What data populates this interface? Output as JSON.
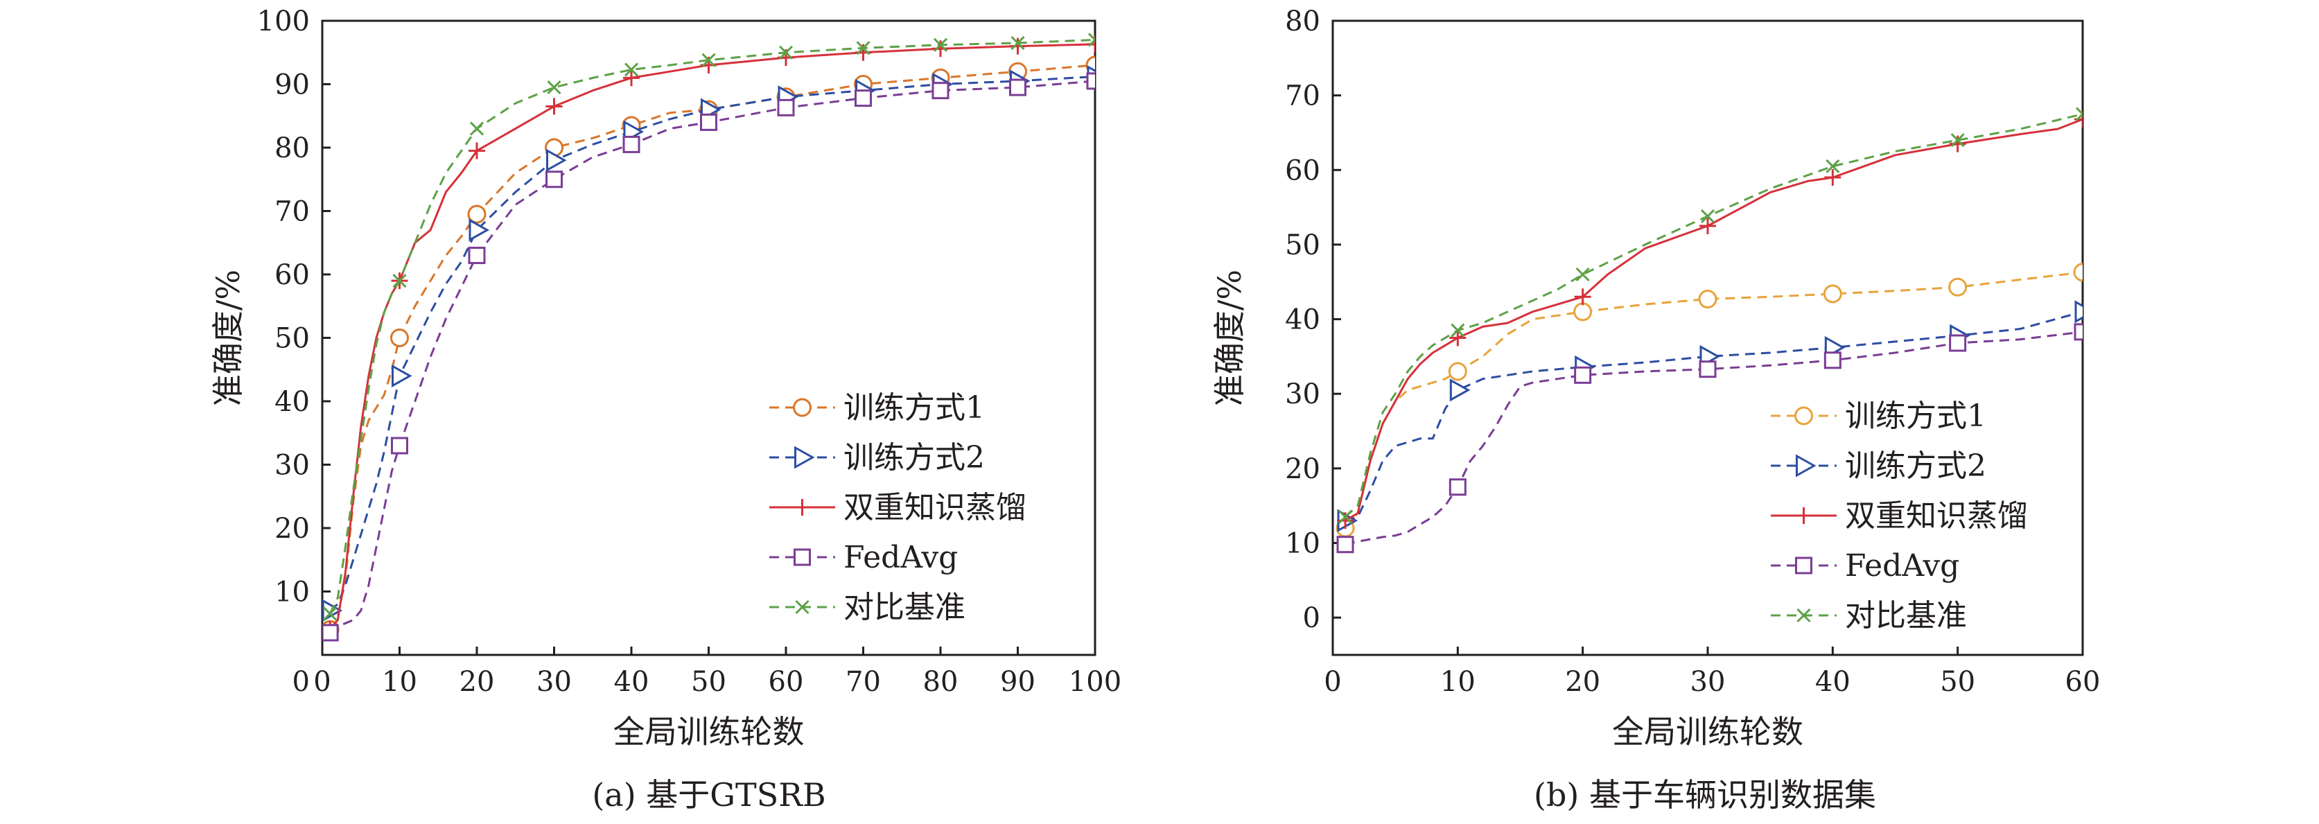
{
  "chart_data": [
    {
      "type": "line",
      "caption": "(a)  基于GTSRB",
      "xlabel": "全局训练轮数",
      "ylabel": "准确度/%",
      "xlim": [
        0,
        100
      ],
      "ylim": [
        0,
        100
      ],
      "xticks": [
        0,
        10,
        20,
        30,
        40,
        50,
        60,
        70,
        80,
        90,
        100
      ],
      "yticks": [
        10,
        20,
        30,
        40,
        50,
        60,
        70,
        80,
        90,
        100
      ],
      "ytick_labels": [
        "10",
        "20",
        "30",
        "40",
        "50",
        "60",
        "70",
        "80",
        "90",
        "100"
      ],
      "grid": false,
      "legend_position": "right",
      "series": [
        {
          "name": "训练方式1",
          "color": "#d9762b",
          "dash": "dashed",
          "marker": "circle",
          "x": [
            1,
            2,
            3,
            4,
            5,
            6,
            7,
            8,
            9,
            10,
            12,
            14,
            16,
            18,
            20,
            25,
            30,
            35,
            40,
            45,
            50,
            60,
            70,
            80,
            90,
            100
          ],
          "y": [
            4,
            6,
            12,
            24,
            33,
            37,
            39,
            41,
            45,
            50,
            55,
            59,
            63,
            66,
            69.5,
            76,
            80,
            81.5,
            83.5,
            85.5,
            86,
            88,
            90,
            91,
            92,
            93
          ]
        },
        {
          "name": "训练方式2",
          "color": "#2c4ea3",
          "dash": "dashed",
          "marker": "triangle-right",
          "x": [
            1,
            2,
            3,
            4,
            5,
            6,
            7,
            8,
            9,
            10,
            12,
            14,
            16,
            18,
            20,
            25,
            30,
            35,
            40,
            45,
            50,
            60,
            70,
            80,
            90,
            100
          ],
          "y": [
            7,
            8,
            11,
            15,
            19,
            23,
            27,
            32,
            38,
            44,
            49,
            54,
            58.5,
            62,
            67,
            73,
            78,
            80.5,
            82.5,
            84.5,
            86,
            88,
            89,
            90,
            90.5,
            91.2
          ]
        },
        {
          "name": "双重知识蒸馏",
          "color": "#d5313a",
          "dash": "solid",
          "marker": "plus",
          "x": [
            1,
            2,
            3,
            4,
            5,
            6,
            7,
            8,
            9,
            10,
            12,
            14,
            16,
            18,
            20,
            25,
            30,
            35,
            40,
            45,
            50,
            60,
            70,
            80,
            90,
            100
          ],
          "y": [
            4,
            5.5,
            13,
            25,
            36,
            44,
            50,
            54,
            57,
            59,
            65,
            67,
            73,
            76,
            79.5,
            83,
            86.5,
            89,
            91,
            92,
            93,
            94.2,
            95,
            95.6,
            96,
            96.3
          ]
        },
        {
          "name": "FedAvg",
          "color": "#7a3d95",
          "dash": "dashed",
          "marker": "square",
          "x": [
            1,
            2,
            3,
            4,
            5,
            6,
            7,
            8,
            9,
            10,
            12,
            14,
            16,
            18,
            20,
            25,
            30,
            35,
            40,
            45,
            50,
            60,
            70,
            80,
            90,
            100
          ],
          "y": [
            3.5,
            4.5,
            5,
            5.5,
            7,
            11,
            17,
            23,
            29,
            33,
            40,
            47,
            53,
            58,
            63,
            71,
            75,
            78.5,
            80.5,
            83,
            84,
            86.3,
            87.8,
            89,
            89.5,
            90.5
          ]
        },
        {
          "name": "对比基准",
          "color": "#5da146",
          "dash": "dashed",
          "marker": "x",
          "x": [
            1,
            2,
            3,
            4,
            5,
            6,
            7,
            8,
            9,
            10,
            12,
            14,
            16,
            18,
            20,
            25,
            30,
            35,
            40,
            45,
            50,
            60,
            70,
            80,
            90,
            100
          ],
          "y": [
            6.5,
            9,
            17,
            26,
            34,
            42,
            49,
            54,
            57,
            59,
            65,
            71,
            76,
            79.5,
            83,
            87,
            89.5,
            91,
            92.3,
            93,
            93.8,
            95,
            95.7,
            96.2,
            96.5,
            97
          ]
        }
      ]
    },
    {
      "type": "line",
      "caption": "(b)  基于车辆识别数据集",
      "xlabel": "全局训练轮数",
      "ylabel": "准确度/%",
      "xlim": [
        0,
        60
      ],
      "ylim": [
        -5,
        80
      ],
      "xticks": [
        0,
        10,
        20,
        30,
        40,
        50,
        60
      ],
      "yticks": [
        0,
        10,
        20,
        30,
        40,
        50,
        60,
        70,
        80
      ],
      "ytick_labels": [
        "0",
        "10",
        "20",
        "30",
        "40",
        "50",
        "60",
        "70",
        "80"
      ],
      "grid": false,
      "legend_position": "right",
      "series": [
        {
          "name": "训练方式1",
          "color": "#e8a33a",
          "dash": "dashed",
          "marker": "circle",
          "x": [
            1,
            2,
            3,
            4,
            5,
            6,
            7,
            8,
            9,
            10,
            12,
            14,
            16,
            18,
            20,
            25,
            30,
            35,
            40,
            45,
            50,
            55,
            60
          ],
          "y": [
            12,
            14,
            21,
            26,
            29,
            30.5,
            31,
            31.5,
            32,
            33,
            35,
            38,
            40,
            40.5,
            41,
            42,
            42.7,
            43,
            43.4,
            43.8,
            44.3,
            45.3,
            46.3
          ]
        },
        {
          "name": "训练方式2",
          "color": "#2c4ea3",
          "dash": "dashed",
          "marker": "triangle-right",
          "x": [
            1,
            2,
            3,
            4,
            5,
            6,
            7,
            8,
            9,
            10,
            12,
            14,
            16,
            18,
            20,
            25,
            30,
            35,
            40,
            45,
            50,
            55,
            60
          ],
          "y": [
            13,
            13.5,
            17,
            21,
            23,
            23.5,
            24,
            24,
            28,
            30.5,
            32,
            32.5,
            33,
            33.3,
            33.6,
            34.2,
            35,
            35.5,
            36.2,
            37,
            37.8,
            38.7,
            41
          ]
        },
        {
          "name": "双重知识蒸馏",
          "color": "#d5313a",
          "dash": "solid",
          "marker": "plus",
          "x": [
            1,
            2,
            3,
            4,
            5,
            6,
            7,
            8,
            9,
            10,
            12,
            14,
            16,
            18,
            20,
            22,
            25,
            30,
            35,
            38,
            40,
            45,
            50,
            55,
            58,
            60
          ],
          "y": [
            13,
            14,
            21,
            26,
            29,
            32,
            34,
            35.5,
            36.5,
            37.5,
            39,
            39.5,
            41,
            42,
            43,
            46,
            49.5,
            52.5,
            57,
            58.5,
            59,
            62,
            63.5,
            64.8,
            65.5,
            66.8
          ]
        },
        {
          "name": "FedAvg",
          "color": "#7a3d95",
          "dash": "dashed",
          "marker": "square",
          "x": [
            1,
            2,
            3,
            4,
            5,
            6,
            7,
            8,
            9,
            10,
            11,
            12,
            13,
            14,
            15,
            16,
            18,
            20,
            25,
            30,
            35,
            40,
            45,
            50,
            55,
            60
          ],
          "y": [
            9.8,
            10.2,
            10.5,
            10.8,
            11,
            11.5,
            12.5,
            13.5,
            15,
            17.5,
            21,
            23,
            25.5,
            28.5,
            31,
            31.5,
            32,
            32.5,
            33,
            33.3,
            33.8,
            34.5,
            35.5,
            36.8,
            37.3,
            38.3
          ]
        },
        {
          "name": "对比基准",
          "color": "#5da146",
          "dash": "dashed",
          "marker": "x",
          "x": [
            1,
            2,
            3,
            4,
            5,
            6,
            7,
            8,
            9,
            10,
            12,
            14,
            16,
            18,
            20,
            25,
            30,
            35,
            40,
            45,
            50,
            55,
            60
          ],
          "y": [
            13.5,
            15,
            22,
            27.5,
            30,
            33,
            35,
            36.5,
            37.5,
            38.5,
            39.5,
            41,
            42.5,
            44,
            46,
            50,
            53.8,
            57.5,
            60.5,
            62.5,
            64,
            65.5,
            67.5
          ]
        }
      ]
    }
  ]
}
